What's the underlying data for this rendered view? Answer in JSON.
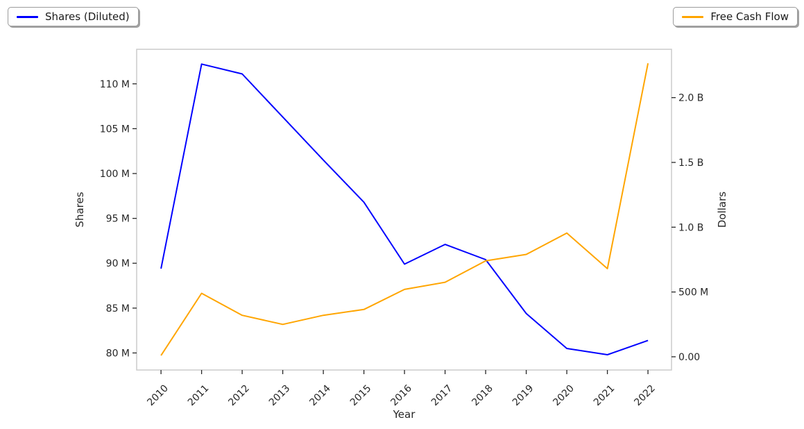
{
  "figure": {
    "background": "#ffffff",
    "spine_color": "#cccccc",
    "tick_color": "#262626"
  },
  "legends": [
    {
      "label": "Shares (Diluted)",
      "color": "#0000ff",
      "position": "top-left"
    },
    {
      "label": "Free Cash Flow",
      "color": "#ffa500",
      "position": "top-right"
    }
  ],
  "chart_data": {
    "type": "line",
    "title": "",
    "xlabel": "Year",
    "grid": false,
    "x": [
      2010,
      2011,
      2012,
      2013,
      2014,
      2015,
      2016,
      2017,
      2018,
      2019,
      2020,
      2021,
      2022
    ],
    "x_tick_labels": [
      "2010",
      "2011",
      "2012",
      "2013",
      "2014",
      "2015",
      "2016",
      "2017",
      "2018",
      "2019",
      "2020",
      "2021",
      "2022"
    ],
    "series": [
      {
        "name": "Shares (Diluted)",
        "axis": "left",
        "color": "#0000ff",
        "unit": "shares",
        "values": [
          89400000,
          112200000,
          111100000,
          106300000,
          101500000,
          96800000,
          89900000,
          92100000,
          90400000,
          84400000,
          80500000,
          79800000,
          81400000
        ]
      },
      {
        "name": "Free Cash Flow",
        "axis": "right",
        "color": "#ffa500",
        "unit": "dollars",
        "values": [
          10000000,
          490000000,
          320000000,
          250000000,
          320000000,
          365000000,
          520000000,
          575000000,
          740000000,
          790000000,
          955000000,
          680000000,
          2265000000
        ]
      }
    ],
    "axes": {
      "x": {
        "label": "Year",
        "lim": [
          2009.4,
          2022.58
        ]
      },
      "left": {
        "label": "Shares",
        "lim": [
          78100000,
          113850000
        ],
        "ticks": [
          {
            "v": 80000000,
            "label": "80 M"
          },
          {
            "v": 85000000,
            "label": "85 M"
          },
          {
            "v": 90000000,
            "label": "90 M"
          },
          {
            "v": 95000000,
            "label": "95 M"
          },
          {
            "v": 100000000,
            "label": "100 M"
          },
          {
            "v": 105000000,
            "label": "105 M"
          },
          {
            "v": 110000000,
            "label": "110 M"
          }
        ]
      },
      "right": {
        "label": "Dollars",
        "lim": [
          -102000000,
          2373000000
        ],
        "ticks": [
          {
            "v": 0,
            "label": "0.00"
          },
          {
            "v": 500000000,
            "label": "500 M"
          },
          {
            "v": 1000000000,
            "label": "1.0 B"
          },
          {
            "v": 1500000000,
            "label": "1.5 B"
          },
          {
            "v": 2000000000,
            "label": "2.0 B"
          }
        ]
      }
    }
  }
}
